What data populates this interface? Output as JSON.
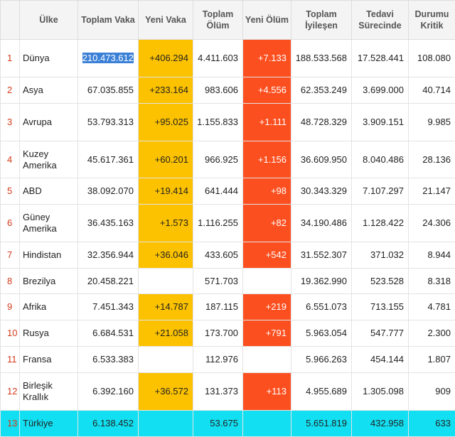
{
  "headers": {
    "ulke": "Ülke",
    "toplam_vaka": "Toplam Vaka",
    "yeni_vaka": "Yeni Vaka",
    "toplam_olum": "Toplam Ölüm",
    "yeni_olum": "Yeni Ölüm",
    "toplam_iyilesen": "Toplam İyileşen",
    "tedavi_surecinde": "Tedavi Sürecinde",
    "durumu_kritik": "Durumu Kritik"
  },
  "rows": [
    {
      "no": "1",
      "ulke": "Dünya",
      "toplam_vaka": "210.473.612",
      "yeni_vaka": "+406.294",
      "toplam_olum": "4.411.603",
      "yeni_olum": "+7.133",
      "toplam_iyilesen": "188.533.568",
      "tedavi_surecinde": "17.528.441",
      "durumu_kritik": "108.080"
    },
    {
      "no": "2",
      "ulke": "Asya",
      "toplam_vaka": "67.035.855",
      "yeni_vaka": "+233.164",
      "toplam_olum": "983.606",
      "yeni_olum": "+4.556",
      "toplam_iyilesen": "62.353.249",
      "tedavi_surecinde": "3.699.000",
      "durumu_kritik": "40.714"
    },
    {
      "no": "3",
      "ulke": "Avrupa",
      "toplam_vaka": "53.793.313",
      "yeni_vaka": "+95.025",
      "toplam_olum": "1.155.833",
      "yeni_olum": "+1.111",
      "toplam_iyilesen": "48.728.329",
      "tedavi_surecinde": "3.909.151",
      "durumu_kritik": "9.985"
    },
    {
      "no": "4",
      "ulke": "Kuzey Amerika",
      "toplam_vaka": "45.617.361",
      "yeni_vaka": "+60.201",
      "toplam_olum": "966.925",
      "yeni_olum": "+1.156",
      "toplam_iyilesen": "36.609.950",
      "tedavi_surecinde": "8.040.486",
      "durumu_kritik": "28.136"
    },
    {
      "no": "5",
      "ulke": "ABD",
      "toplam_vaka": "38.092.070",
      "yeni_vaka": "+19.414",
      "toplam_olum": "641.444",
      "yeni_olum": "+98",
      "toplam_iyilesen": "30.343.329",
      "tedavi_surecinde": "7.107.297",
      "durumu_kritik": "21.147"
    },
    {
      "no": "6",
      "ulke": "Güney Amerika",
      "toplam_vaka": "36.435.163",
      "yeni_vaka": "+1.573",
      "toplam_olum": "1.116.255",
      "yeni_olum": "+82",
      "toplam_iyilesen": "34.190.486",
      "tedavi_surecinde": "1.128.422",
      "durumu_kritik": "24.306"
    },
    {
      "no": "7",
      "ulke": "Hindistan",
      "toplam_vaka": "32.356.944",
      "yeni_vaka": "+36.046",
      "toplam_olum": "433.605",
      "yeni_olum": "+542",
      "toplam_iyilesen": "31.552.307",
      "tedavi_surecinde": "371.032",
      "durumu_kritik": "8.944"
    },
    {
      "no": "8",
      "ulke": "Brezilya",
      "toplam_vaka": "20.458.221",
      "yeni_vaka": "",
      "toplam_olum": "571.703",
      "yeni_olum": "",
      "toplam_iyilesen": "19.362.990",
      "tedavi_surecinde": "523.528",
      "durumu_kritik": "8.318"
    },
    {
      "no": "9",
      "ulke": "Afrika",
      "toplam_vaka": "7.451.343",
      "yeni_vaka": "+14.787",
      "toplam_olum": "187.115",
      "yeni_olum": "+219",
      "toplam_iyilesen": "6.551.073",
      "tedavi_surecinde": "713.155",
      "durumu_kritik": "4.781"
    },
    {
      "no": "10",
      "ulke": "Rusya",
      "toplam_vaka": "6.684.531",
      "yeni_vaka": "+21.058",
      "toplam_olum": "173.700",
      "yeni_olum": "+791",
      "toplam_iyilesen": "5.963.054",
      "tedavi_surecinde": "547.777",
      "durumu_kritik": "2.300"
    },
    {
      "no": "11",
      "ulke": "Fransa",
      "toplam_vaka": "6.533.383",
      "yeni_vaka": "",
      "toplam_olum": "112.976",
      "yeni_olum": "",
      "toplam_iyilesen": "5.966.263",
      "tedavi_surecinde": "454.144",
      "durumu_kritik": "1.807"
    },
    {
      "no": "12",
      "ulke": "Birleşik Krallık",
      "toplam_vaka": "6.392.160",
      "yeni_vaka": "+36.572",
      "toplam_olum": "131.373",
      "yeni_olum": "+113",
      "toplam_iyilesen": "4.955.689",
      "tedavi_surecinde": "1.305.098",
      "durumu_kritik": "909"
    },
    {
      "no": "13",
      "ulke": "Türkiye",
      "toplam_vaka": "6.138.452",
      "yeni_vaka": "",
      "toplam_olum": "53.675",
      "yeni_olum": "",
      "toplam_iyilesen": "5.651.819",
      "tedavi_surecinde": "432.958",
      "durumu_kritik": "633"
    }
  ],
  "colors": {
    "new_cases": "#fcc200",
    "new_deaths": "#fc4f1f",
    "highlight_row": "#12e0f2",
    "selection": "#3b80d7",
    "index_text": "#d43a1a"
  }
}
